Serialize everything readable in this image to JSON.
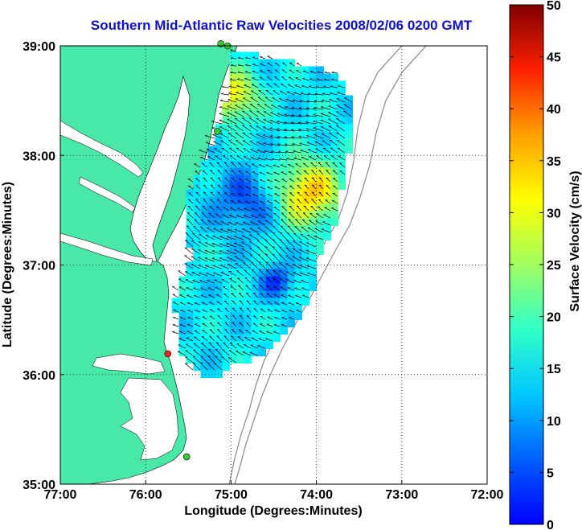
{
  "title": "Southern Mid-Atlantic Raw Velocities 2008/02/06 0200 GMT",
  "map": {
    "xlabel": "Longitude (Degrees:Minutes)",
    "ylabel": "Latitude (Degrees:Minutes)",
    "lon_range": [
      -77,
      -72
    ],
    "lat_range": [
      35,
      39
    ],
    "x_ticks": [
      {
        "value": -77,
        "label": "77:00"
      },
      {
        "value": -76,
        "label": "76:00"
      },
      {
        "value": -75,
        "label": "75:00"
      },
      {
        "value": -74,
        "label": "74:00"
      },
      {
        "value": -73,
        "label": "73:00"
      },
      {
        "value": -72,
        "label": "72:00"
      }
    ],
    "y_ticks": [
      {
        "value": 35,
        "label": "35:00"
      },
      {
        "value": 36,
        "label": "36:00"
      },
      {
        "value": 37,
        "label": "37:00"
      },
      {
        "value": 38,
        "label": "38:00"
      },
      {
        "value": 39,
        "label": "39:00"
      }
    ],
    "grid": "dotted",
    "land_color": "#48e8a8",
    "stations": [
      {
        "lon": -75.04,
        "lat": 39.0,
        "color": "#33cc33"
      },
      {
        "lon": -75.12,
        "lat": 39.02,
        "color": "#33cc33"
      },
      {
        "lon": -75.16,
        "lat": 38.22,
        "color": "#33cc33"
      },
      {
        "lon": -75.74,
        "lat": 36.19,
        "color": "#ee2222"
      },
      {
        "lon": -75.52,
        "lat": 35.25,
        "color": "#33cc33"
      }
    ]
  },
  "colorbar": {
    "label": "Surface Velocity (cm/s)",
    "min": 0,
    "max": 50,
    "ticks": [
      "0",
      "5",
      "10",
      "15",
      "20",
      "25",
      "30",
      "35",
      "40",
      "45",
      "50"
    ],
    "colormap": "jet"
  }
}
